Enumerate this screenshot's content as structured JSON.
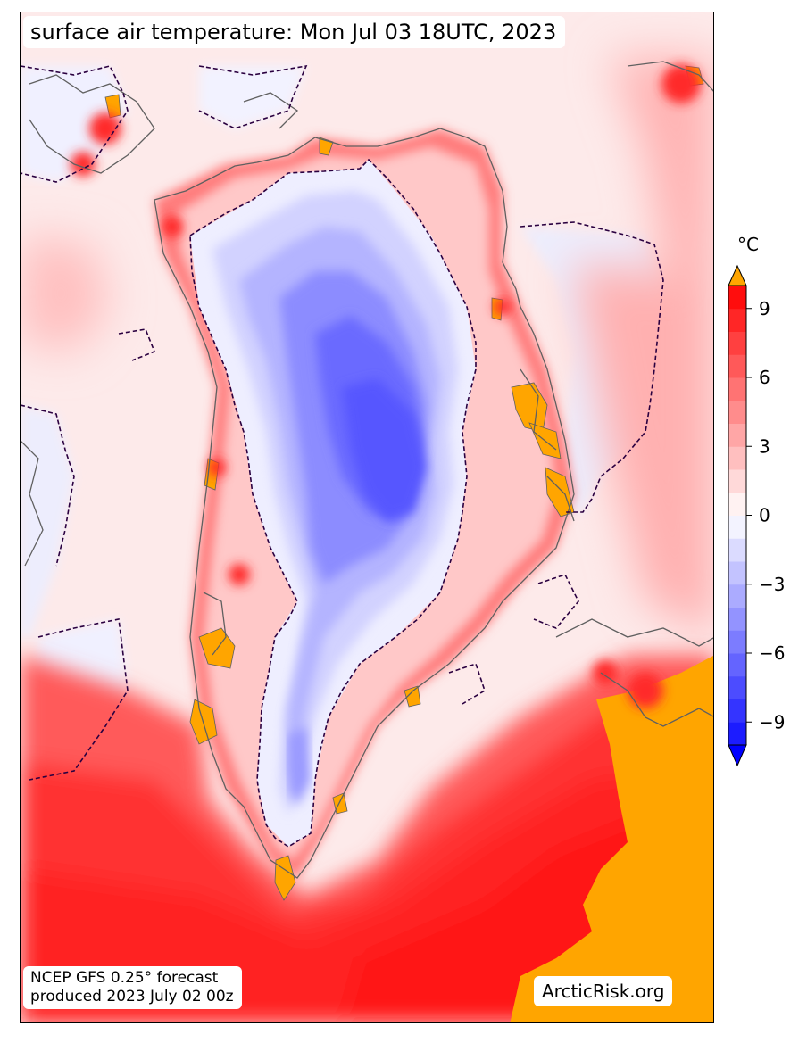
{
  "title": "surface air temperature: Mon Jul 03 18UTC, 2023",
  "source": {
    "line1": "NCEP GFS 0.25° forecast",
    "line2": "produced 2023 July 02 00z"
  },
  "credit": "ArcticRisk.org",
  "colorbar": {
    "unit": "°C",
    "min": -10,
    "max": 10,
    "step": 1,
    "extend": "both",
    "ticks": [
      {
        "value": 9,
        "label": "9"
      },
      {
        "value": 6,
        "label": "6"
      },
      {
        "value": 3,
        "label": "3"
      },
      {
        "value": 0,
        "label": "0"
      },
      {
        "value": -3,
        "label": "−3"
      },
      {
        "value": -6,
        "label": "−6"
      },
      {
        "value": -9,
        "label": "−9"
      }
    ],
    "colors": {
      "below_min": "#0000ff",
      "above_max": "#ffa500",
      "cold_end": "#1010ff",
      "neutral": "#ffffff",
      "warm_end": "#ff0000"
    }
  },
  "map": {
    "region": "Greenland",
    "zero_contour_style": "dashed",
    "colors": {
      "ocean_far": "#fdeaea",
      "coast_warm": "#ff7070",
      "atlantic": "#ff2525",
      "hot": "#ffa500",
      "ice_sheet_edge": "#ececff",
      "ice_sheet_mid": "#a8a8ff",
      "ice_sheet_core": "#5a5aff",
      "coastline": "#606060",
      "contour": "#2a0040"
    }
  }
}
